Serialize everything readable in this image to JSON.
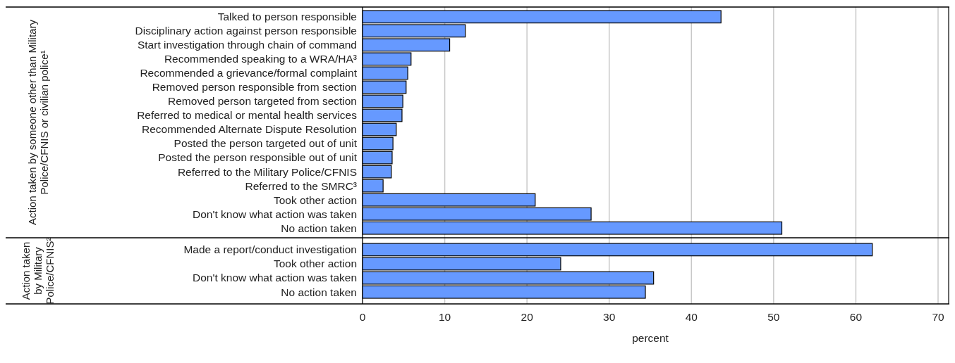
{
  "chart_data": [
    {
      "type": "bar",
      "orientation": "horizontal",
      "ylabel": "Action taken by someone other than Military Police/CFNIS or civilian police¹",
      "categories": [
        "Talked to person responsible",
        "Disciplinary action against person responsible",
        "Start investigation through chain of command",
        "Recommended speaking to a WRA/HA³",
        "Recommended a grievance/formal complaint",
        "Removed person responsible from section",
        "Removed person targeted from section",
        "Referred to medical or mental health services",
        "Recommended Alternate Dispute Resolution",
        "Posted the person targeted out of unit",
        "Posted the person responsible out of unit",
        "Referred to the Military Police/CFNIS",
        "Referred to the SMRC³",
        "Took other action",
        "Don't know what action was taken",
        "No action taken"
      ],
      "values": [
        43.6,
        12.5,
        10.6,
        5.9,
        5.5,
        5.3,
        4.9,
        4.8,
        4.1,
        3.7,
        3.6,
        3.5,
        2.5,
        21.0,
        27.8,
        51.0
      ],
      "color": "#6699ff",
      "xlim": [
        0,
        70
      ],
      "xticks": [
        0,
        10,
        20,
        30,
        40,
        50,
        60,
        70
      ],
      "grid": "x",
      "tick_labels": "y"
    },
    {
      "type": "bar",
      "orientation": "horizontal",
      "ylabel": "Action taken by Military Police/CFNIS²",
      "xlabel": "percent",
      "categories": [
        "Made a report/conduct investigation",
        "Took other action",
        "Don't know what action was taken",
        "No action taken"
      ],
      "values": [
        62.0,
        24.1,
        35.4,
        34.4
      ],
      "color": "#6699ff",
      "xlim": [
        0,
        70
      ],
      "xticks": [
        0,
        10,
        20,
        30,
        40,
        50,
        60,
        70
      ],
      "grid": "x"
    }
  ]
}
